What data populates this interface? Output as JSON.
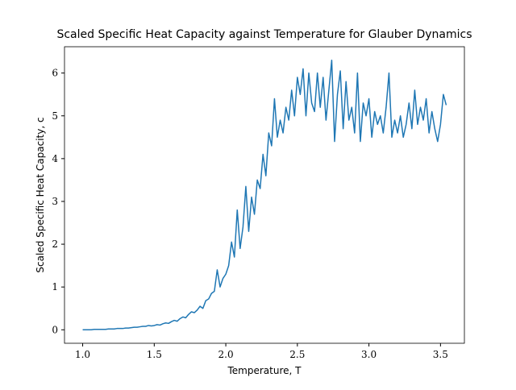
{
  "chart_data": {
    "type": "line",
    "title": "Scaled Specific Heat Capacity against Temperature for Glauber Dynamics",
    "x_label": "Temperature, T",
    "y_label": "Scaled Specific Heat Capacity, c",
    "x": [
      1.0,
      1.02,
      1.04,
      1.06,
      1.08,
      1.1,
      1.12,
      1.14,
      1.16,
      1.18,
      1.2,
      1.22,
      1.24,
      1.26,
      1.28,
      1.3,
      1.32,
      1.34,
      1.36,
      1.38,
      1.4,
      1.42,
      1.44,
      1.46,
      1.48,
      1.5,
      1.52,
      1.54,
      1.56,
      1.58,
      1.6,
      1.62,
      1.64,
      1.66,
      1.68,
      1.7,
      1.72,
      1.74,
      1.76,
      1.78,
      1.8,
      1.82,
      1.84,
      1.86,
      1.88,
      1.9,
      1.92,
      1.94,
      1.96,
      1.98,
      2.0,
      2.02,
      2.04,
      2.06,
      2.08,
      2.1,
      2.12,
      2.14,
      2.16,
      2.18,
      2.2,
      2.22,
      2.24,
      2.26,
      2.28,
      2.3,
      2.32,
      2.34,
      2.36,
      2.38,
      2.4,
      2.42,
      2.44,
      2.46,
      2.48,
      2.5,
      2.52,
      2.54,
      2.56,
      2.58,
      2.6,
      2.62,
      2.64,
      2.66,
      2.68,
      2.7,
      2.72,
      2.74,
      2.76,
      2.78,
      2.8,
      2.82,
      2.84,
      2.86,
      2.88,
      2.9,
      2.92,
      2.94,
      2.96,
      2.98,
      3.0,
      3.02,
      3.04,
      3.06,
      3.08,
      3.1,
      3.12,
      3.14,
      3.16,
      3.18,
      3.2,
      3.22,
      3.24,
      3.26,
      3.28,
      3.3,
      3.32,
      3.34,
      3.36,
      3.38,
      3.4,
      3.42,
      3.44,
      3.46,
      3.48,
      3.5,
      3.52,
      3.54
    ],
    "series": [
      {
        "color": "#1f77b4",
        "values": [
          0,
          0,
          0,
          0,
          0.01,
          0.01,
          0.01,
          0.01,
          0.01,
          0.02,
          0.02,
          0.02,
          0.03,
          0.03,
          0.03,
          0.04,
          0.04,
          0.05,
          0.06,
          0.06,
          0.07,
          0.08,
          0.08,
          0.1,
          0.09,
          0.1,
          0.12,
          0.11,
          0.14,
          0.16,
          0.15,
          0.19,
          0.22,
          0.2,
          0.26,
          0.3,
          0.28,
          0.36,
          0.42,
          0.4,
          0.46,
          0.55,
          0.5,
          0.68,
          0.72,
          0.85,
          0.9,
          1.4,
          1.0,
          1.2,
          1.3,
          1.5,
          2.05,
          1.7,
          2.8,
          1.9,
          2.4,
          3.35,
          2.3,
          3.1,
          2.7,
          3.5,
          3.3,
          4.1,
          3.6,
          4.6,
          4.3,
          5.4,
          4.5,
          4.9,
          4.6,
          5.2,
          4.9,
          5.6,
          5.0,
          5.9,
          5.5,
          6.1,
          5.0,
          6.0,
          5.3,
          5.1,
          6.0,
          5.2,
          5.9,
          4.9,
          5.6,
          6.3,
          4.4,
          5.5,
          6.05,
          4.7,
          5.8,
          4.9,
          5.2,
          4.6,
          6.0,
          4.4,
          5.3,
          5.0,
          5.4,
          4.5,
          5.1,
          4.8,
          5.0,
          4.6,
          5.2,
          6.0,
          4.5,
          4.9,
          4.6,
          5.0,
          4.5,
          4.8,
          5.3,
          4.7,
          5.6,
          4.8,
          5.2,
          4.9,
          5.4,
          4.6,
          5.1,
          4.7,
          4.4,
          4.8,
          5.5,
          5.25
        ]
      }
    ],
    "xlim": [
      0.873,
      3.667
    ],
    "ylim": [
      -0.315,
      6.615
    ],
    "xticks": [
      {
        "value": 1,
        "label": "1.0"
      },
      {
        "value": 1.5,
        "label": "1.5"
      },
      {
        "value": 2,
        "label": "2.0"
      },
      {
        "value": 2.5,
        "label": "2.5"
      },
      {
        "value": 3,
        "label": "3.0"
      },
      {
        "value": 3.5,
        "label": "3.5"
      }
    ],
    "yticks": [
      0,
      1,
      2,
      3,
      4,
      5,
      6
    ]
  }
}
